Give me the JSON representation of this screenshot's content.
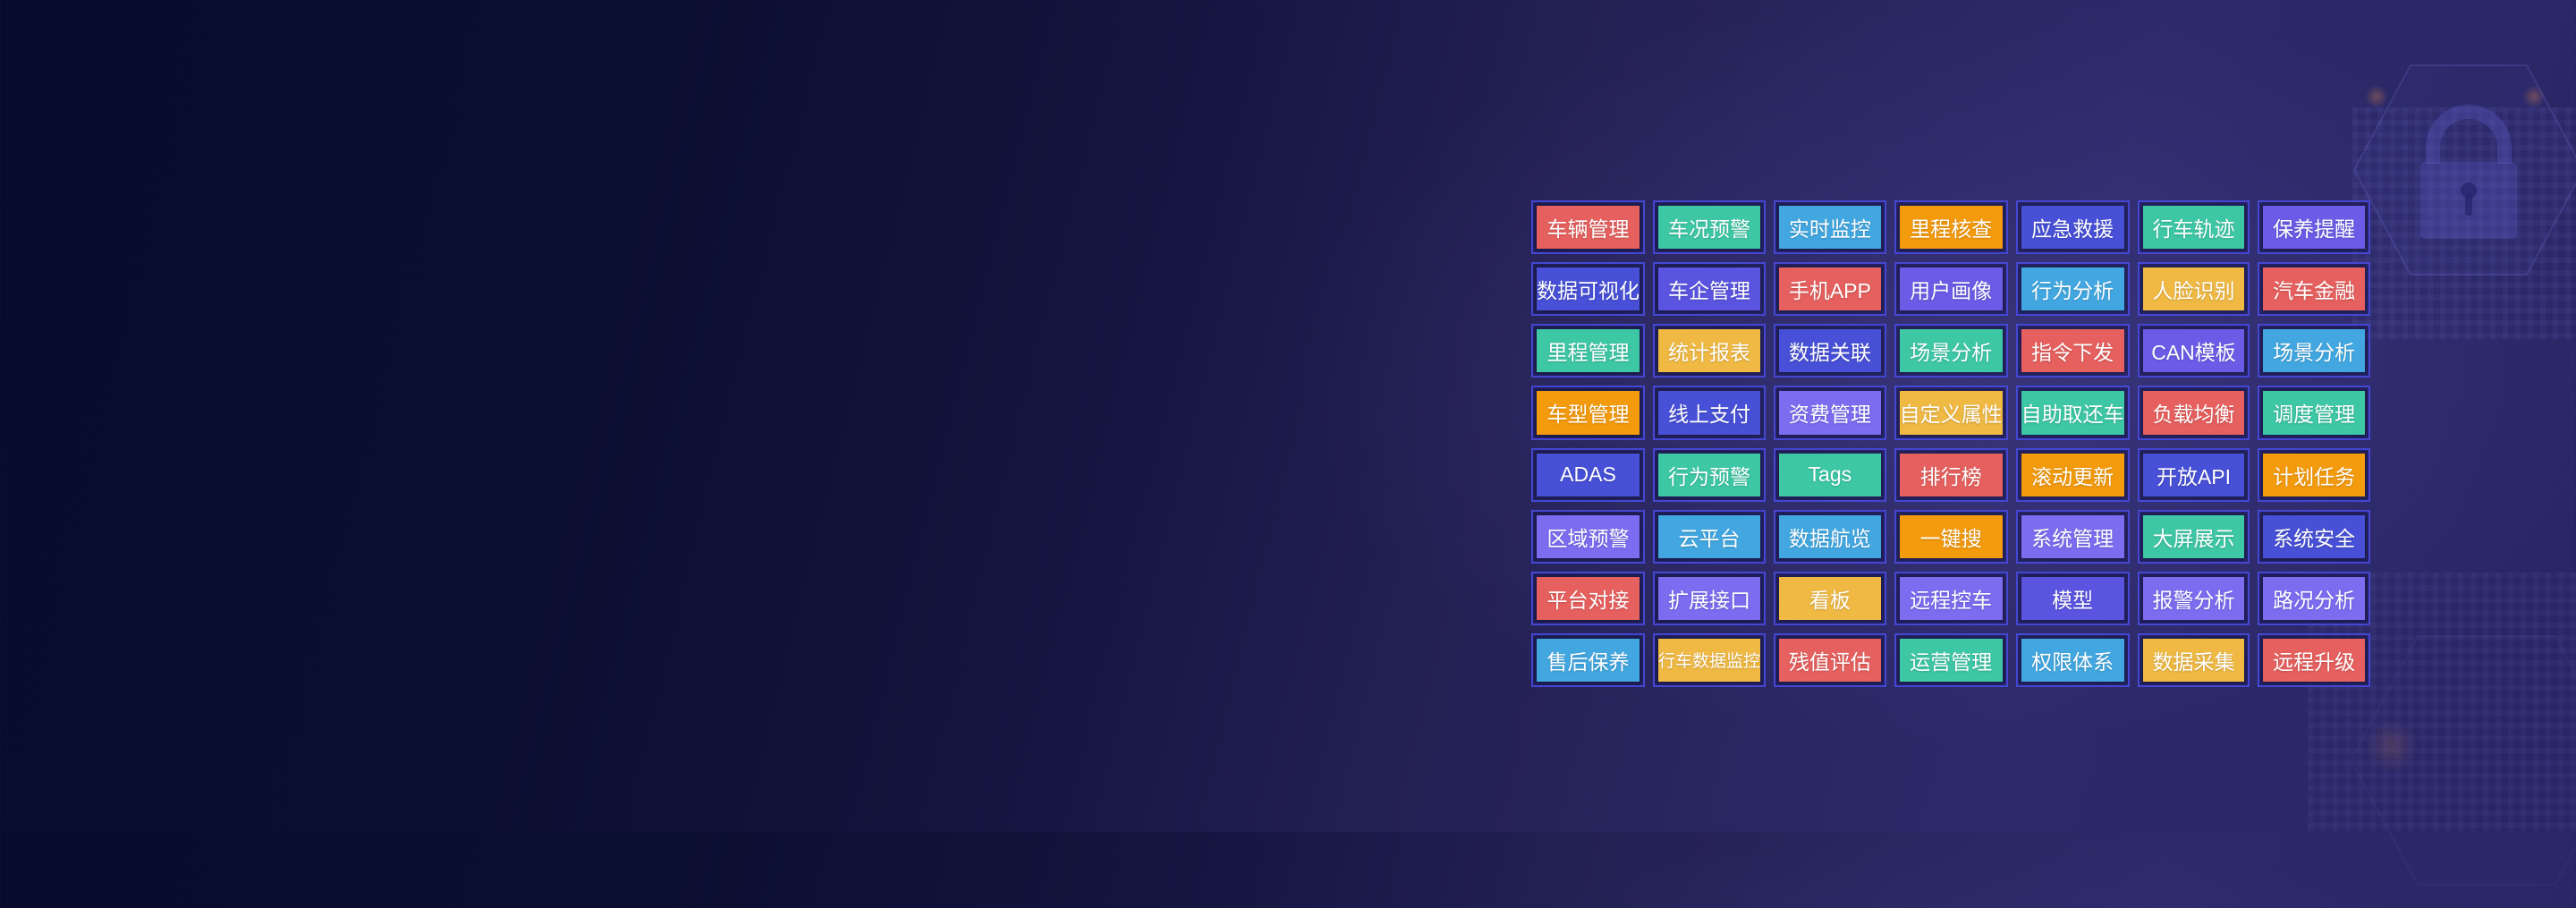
{
  "palette": {
    "red": "#e5605e",
    "teal": "#3ec7a5",
    "blue": "#42a7e0",
    "orange": "#f39a0d",
    "yellow": "#efb944",
    "indigo": "#4750d6",
    "purple": "#6a5ce6",
    "violet": "#5a54e0",
    "lilac": "#7b6cf0"
  },
  "grid": {
    "rows": 8,
    "cols": 7,
    "cell_border_color": "#4547d2",
    "buttons": [
      {
        "label": "车辆管理",
        "color": "red"
      },
      {
        "label": "车况预警",
        "color": "teal"
      },
      {
        "label": "实时监控",
        "color": "blue"
      },
      {
        "label": "里程核查",
        "color": "orange"
      },
      {
        "label": "应急救援",
        "color": "indigo"
      },
      {
        "label": "行车轨迹",
        "color": "teal"
      },
      {
        "label": "保养提醒",
        "color": "purple"
      },
      {
        "label": "数据可视化",
        "color": "indigo"
      },
      {
        "label": "车企管理",
        "color": "violet"
      },
      {
        "label": "手机APP",
        "color": "red"
      },
      {
        "label": "用户画像",
        "color": "purple"
      },
      {
        "label": "行为分析",
        "color": "blue"
      },
      {
        "label": "人脸识别",
        "color": "yellow"
      },
      {
        "label": "汽车金融",
        "color": "red"
      },
      {
        "label": "里程管理",
        "color": "teal"
      },
      {
        "label": "统计报表",
        "color": "yellow"
      },
      {
        "label": "数据关联",
        "color": "indigo"
      },
      {
        "label": "场景分析",
        "color": "teal"
      },
      {
        "label": "指令下发",
        "color": "red"
      },
      {
        "label": "CAN模板",
        "color": "purple"
      },
      {
        "label": "场景分析",
        "color": "blue"
      },
      {
        "label": "车型管理",
        "color": "orange"
      },
      {
        "label": "线上支付",
        "color": "indigo"
      },
      {
        "label": "资费管理",
        "color": "lilac"
      },
      {
        "label": "自定义属性",
        "color": "yellow"
      },
      {
        "label": "自助取还车",
        "color": "teal"
      },
      {
        "label": "负载均衡",
        "color": "red"
      },
      {
        "label": "调度管理",
        "color": "teal"
      },
      {
        "label": "ADAS",
        "color": "indigo"
      },
      {
        "label": "行为预警",
        "color": "teal"
      },
      {
        "label": "Tags",
        "color": "teal"
      },
      {
        "label": "排行榜",
        "color": "red"
      },
      {
        "label": "滚动更新",
        "color": "orange"
      },
      {
        "label": "开放API",
        "color": "indigo"
      },
      {
        "label": "计划任务",
        "color": "orange"
      },
      {
        "label": "区域预警",
        "color": "lilac"
      },
      {
        "label": "云平台",
        "color": "blue"
      },
      {
        "label": "数据航览",
        "color": "blue"
      },
      {
        "label": "一键搜",
        "color": "orange"
      },
      {
        "label": "系统管理",
        "color": "lilac"
      },
      {
        "label": "大屏展示",
        "color": "teal"
      },
      {
        "label": "系统安全",
        "color": "indigo"
      },
      {
        "label": "平台对接",
        "color": "red"
      },
      {
        "label": "扩展接口",
        "color": "lilac"
      },
      {
        "label": "看板",
        "color": "yellow"
      },
      {
        "label": "远程控车",
        "color": "lilac"
      },
      {
        "label": "模型",
        "color": "violet"
      },
      {
        "label": "报警分析",
        "color": "lilac"
      },
      {
        "label": "路况分析",
        "color": "lilac"
      },
      {
        "label": "售后保养",
        "color": "blue"
      },
      {
        "label": "行车数据监控",
        "color": "yellow"
      },
      {
        "label": "残值评估",
        "color": "red"
      },
      {
        "label": "运营管理",
        "color": "teal"
      },
      {
        "label": "权限体系",
        "color": "blue"
      },
      {
        "label": "数据采集",
        "color": "yellow"
      },
      {
        "label": "远程升级",
        "color": "red"
      }
    ]
  },
  "decor": {
    "lock_color": "rgba(105,105,215,0.22)",
    "hex_stroke": "rgba(120,120,225,0.25)",
    "corner_glow": "rgba(235,140,70,0.4)"
  }
}
